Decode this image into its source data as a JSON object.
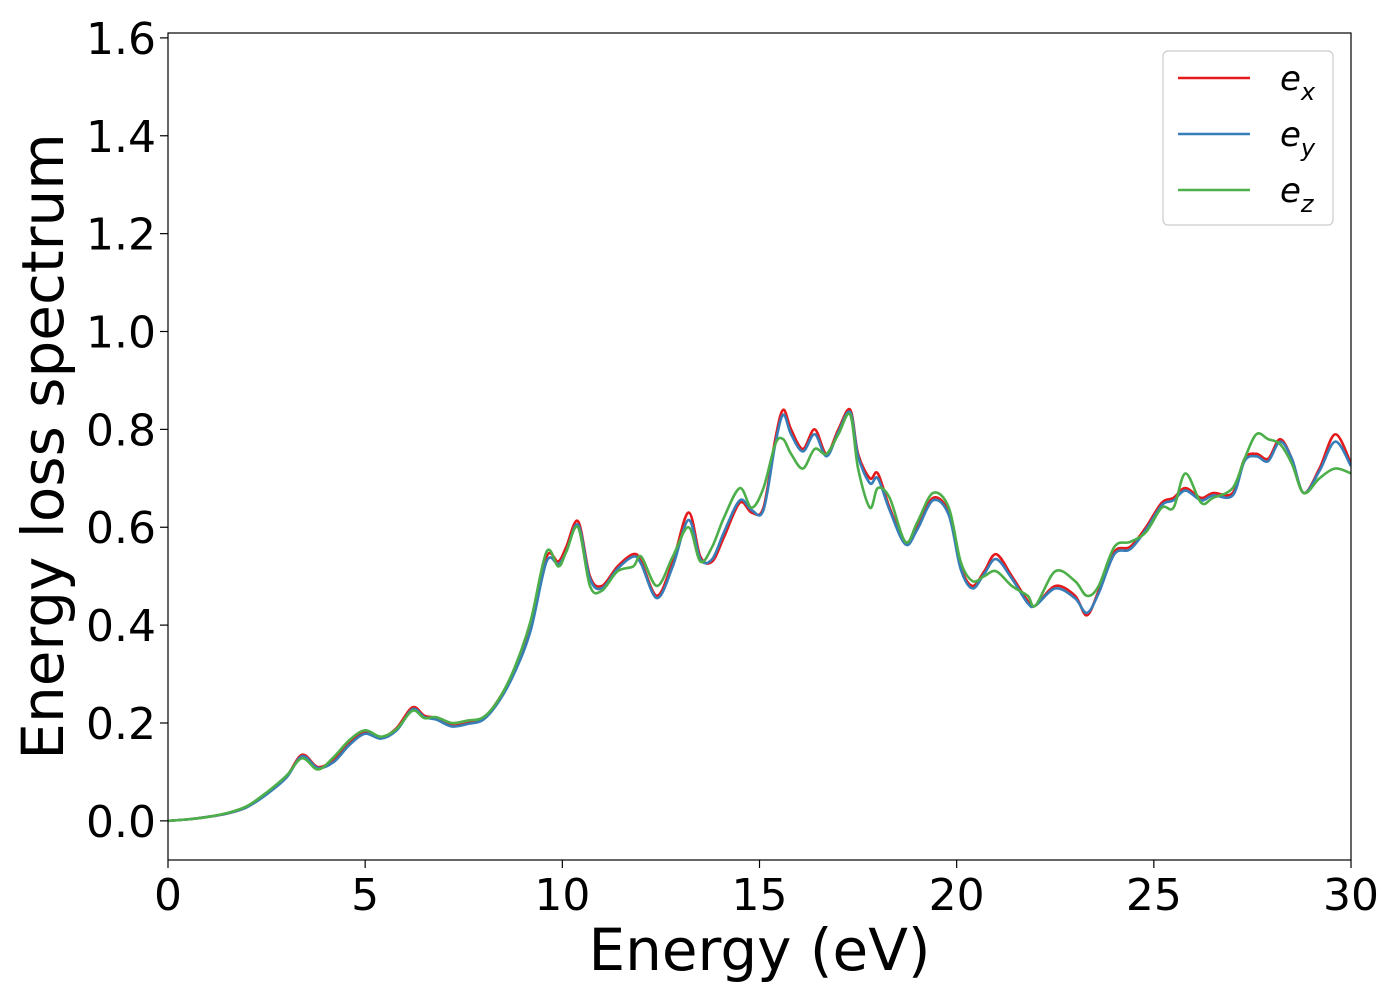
{
  "chart_data": {
    "type": "line",
    "title": "",
    "xlabel": "Energy (eV)",
    "ylabel": "Energy loss spectrum",
    "xlim": [
      0,
      30
    ],
    "ylim": [
      -0.08,
      1.61
    ],
    "xticks": [
      0,
      5,
      10,
      15,
      20,
      25,
      30
    ],
    "xtick_labels": [
      "0",
      "5",
      "10",
      "15",
      "20",
      "25",
      "30"
    ],
    "yticks": [
      0.0,
      0.2,
      0.4,
      0.6,
      0.8,
      1.0,
      1.2,
      1.4,
      1.6
    ],
    "ytick_labels": [
      "0.0",
      "0.2",
      "0.4",
      "0.6",
      "0.8",
      "1.0",
      "1.2",
      "1.4",
      "1.6"
    ],
    "grid": false,
    "legend_position": "top-right",
    "series": [
      {
        "name": "e",
        "subscript": "x",
        "color": "#e41a1c",
        "x": [
          0,
          0.5,
          1,
          1.5,
          2,
          2.5,
          3,
          3.4,
          3.8,
          4.2,
          4.6,
          5,
          5.4,
          5.8,
          6.2,
          6.5,
          6.8,
          7.2,
          7.6,
          8,
          8.4,
          8.8,
          9.2,
          9.6,
          9.9,
          10.1,
          10.4,
          10.7,
          11,
          11.4,
          11.8,
          12,
          12.4,
          12.8,
          13.2,
          13.5,
          13.8,
          14.1,
          14.5,
          14.8,
          15.1,
          15.4,
          15.6,
          15.8,
          16.1,
          16.4,
          16.7,
          17,
          17.3,
          17.5,
          17.8,
          18,
          18.3,
          18.7,
          19,
          19.4,
          19.8,
          20.1,
          20.4,
          20.7,
          21,
          21.4,
          21.8,
          22,
          22.5,
          23,
          23.3,
          23.6,
          24,
          24.4,
          24.8,
          25.2,
          25.5,
          25.8,
          26.2,
          26.5,
          27,
          27.3,
          27.6,
          27.9,
          28.2,
          28.5,
          28.8,
          29.2,
          29.6,
          30
        ],
        "y": [
          0,
          0.003,
          0.008,
          0.015,
          0.028,
          0.055,
          0.09,
          0.135,
          0.11,
          0.125,
          0.16,
          0.18,
          0.17,
          0.19,
          0.232,
          0.215,
          0.21,
          0.195,
          0.2,
          0.21,
          0.25,
          0.31,
          0.4,
          0.54,
          0.53,
          0.56,
          0.612,
          0.5,
          0.48,
          0.52,
          0.545,
          0.53,
          0.46,
          0.53,
          0.63,
          0.54,
          0.53,
          0.58,
          0.65,
          0.63,
          0.64,
          0.78,
          0.84,
          0.8,
          0.76,
          0.8,
          0.75,
          0.8,
          0.84,
          0.75,
          0.7,
          0.71,
          0.64,
          0.57,
          0.6,
          0.66,
          0.63,
          0.52,
          0.48,
          0.51,
          0.545,
          0.5,
          0.45,
          0.44,
          0.48,
          0.46,
          0.42,
          0.47,
          0.55,
          0.56,
          0.6,
          0.65,
          0.66,
          0.68,
          0.66,
          0.67,
          0.67,
          0.74,
          0.75,
          0.74,
          0.78,
          0.74,
          0.67,
          0.72,
          0.79,
          0.73
        ]
      },
      {
        "name": "e",
        "subscript": "y",
        "color": "#377eb8",
        "x": [
          0,
          0.5,
          1,
          1.5,
          2,
          2.5,
          3,
          3.4,
          3.8,
          4.2,
          4.6,
          5,
          5.4,
          5.8,
          6.2,
          6.5,
          6.8,
          7.2,
          7.6,
          8,
          8.4,
          8.8,
          9.2,
          9.6,
          9.9,
          10.1,
          10.4,
          10.7,
          11,
          11.4,
          11.8,
          12,
          12.4,
          12.8,
          13.2,
          13.5,
          13.8,
          14.1,
          14.5,
          14.8,
          15.1,
          15.4,
          15.6,
          15.8,
          16.1,
          16.4,
          16.7,
          17,
          17.3,
          17.5,
          17.8,
          18,
          18.3,
          18.7,
          19,
          19.4,
          19.8,
          20.1,
          20.4,
          20.7,
          21,
          21.4,
          21.8,
          22,
          22.5,
          23,
          23.3,
          23.6,
          24,
          24.4,
          24.8,
          25.2,
          25.5,
          25.8,
          26.2,
          26.5,
          27,
          27.3,
          27.6,
          27.9,
          28.2,
          28.5,
          28.8,
          29.2,
          29.6,
          30
        ],
        "y": [
          0,
          0.003,
          0.008,
          0.015,
          0.028,
          0.054,
          0.088,
          0.132,
          0.108,
          0.12,
          0.155,
          0.178,
          0.168,
          0.185,
          0.228,
          0.212,
          0.207,
          0.193,
          0.198,
          0.207,
          0.245,
          0.305,
          0.39,
          0.53,
          0.525,
          0.55,
          0.605,
          0.495,
          0.475,
          0.515,
          0.54,
          0.525,
          0.455,
          0.52,
          0.615,
          0.535,
          0.535,
          0.59,
          0.655,
          0.635,
          0.635,
          0.77,
          0.83,
          0.79,
          0.755,
          0.79,
          0.745,
          0.795,
          0.835,
          0.745,
          0.69,
          0.7,
          0.635,
          0.565,
          0.595,
          0.655,
          0.625,
          0.515,
          0.475,
          0.505,
          0.535,
          0.495,
          0.445,
          0.44,
          0.475,
          0.455,
          0.425,
          0.465,
          0.545,
          0.555,
          0.595,
          0.645,
          0.655,
          0.675,
          0.655,
          0.665,
          0.665,
          0.735,
          0.745,
          0.735,
          0.775,
          0.74,
          0.67,
          0.715,
          0.775,
          0.725
        ]
      },
      {
        "name": "e",
        "subscript": "z",
        "color": "#4daf4a",
        "x": [
          0,
          0.5,
          1,
          1.5,
          2,
          2.5,
          3,
          3.4,
          3.8,
          4.2,
          4.6,
          5,
          5.4,
          5.8,
          6.2,
          6.5,
          6.8,
          7.2,
          7.6,
          8,
          8.4,
          8.8,
          9.2,
          9.6,
          9.9,
          10.1,
          10.4,
          10.7,
          11,
          11.4,
          11.8,
          12,
          12.4,
          12.8,
          13.2,
          13.5,
          13.8,
          14.1,
          14.5,
          14.8,
          15.1,
          15.4,
          15.6,
          15.8,
          16.1,
          16.4,
          16.7,
          17,
          17.3,
          17.5,
          17.8,
          18,
          18.3,
          18.7,
          19,
          19.4,
          19.8,
          20.1,
          20.4,
          20.7,
          21,
          21.4,
          21.8,
          22,
          22.5,
          23,
          23.3,
          23.6,
          24,
          24.4,
          24.8,
          25.2,
          25.5,
          25.8,
          26.2,
          26.5,
          27,
          27.3,
          27.6,
          27.9,
          28.2,
          28.5,
          28.8,
          29.2,
          29.6,
          30
        ],
        "y": [
          0,
          0.003,
          0.008,
          0.016,
          0.03,
          0.058,
          0.092,
          0.128,
          0.105,
          0.13,
          0.165,
          0.185,
          0.172,
          0.188,
          0.225,
          0.21,
          0.212,
          0.2,
          0.205,
          0.212,
          0.25,
          0.315,
          0.41,
          0.55,
          0.52,
          0.55,
          0.6,
          0.48,
          0.47,
          0.51,
          0.52,
          0.54,
          0.48,
          0.54,
          0.6,
          0.53,
          0.56,
          0.62,
          0.68,
          0.64,
          0.68,
          0.77,
          0.78,
          0.75,
          0.72,
          0.76,
          0.75,
          0.79,
          0.83,
          0.72,
          0.64,
          0.68,
          0.66,
          0.57,
          0.61,
          0.67,
          0.64,
          0.53,
          0.49,
          0.5,
          0.51,
          0.48,
          0.46,
          0.44,
          0.51,
          0.49,
          0.46,
          0.48,
          0.56,
          0.57,
          0.59,
          0.64,
          0.64,
          0.71,
          0.65,
          0.66,
          0.68,
          0.74,
          0.79,
          0.78,
          0.77,
          0.73,
          0.67,
          0.7,
          0.72,
          0.71
        ]
      }
    ]
  }
}
